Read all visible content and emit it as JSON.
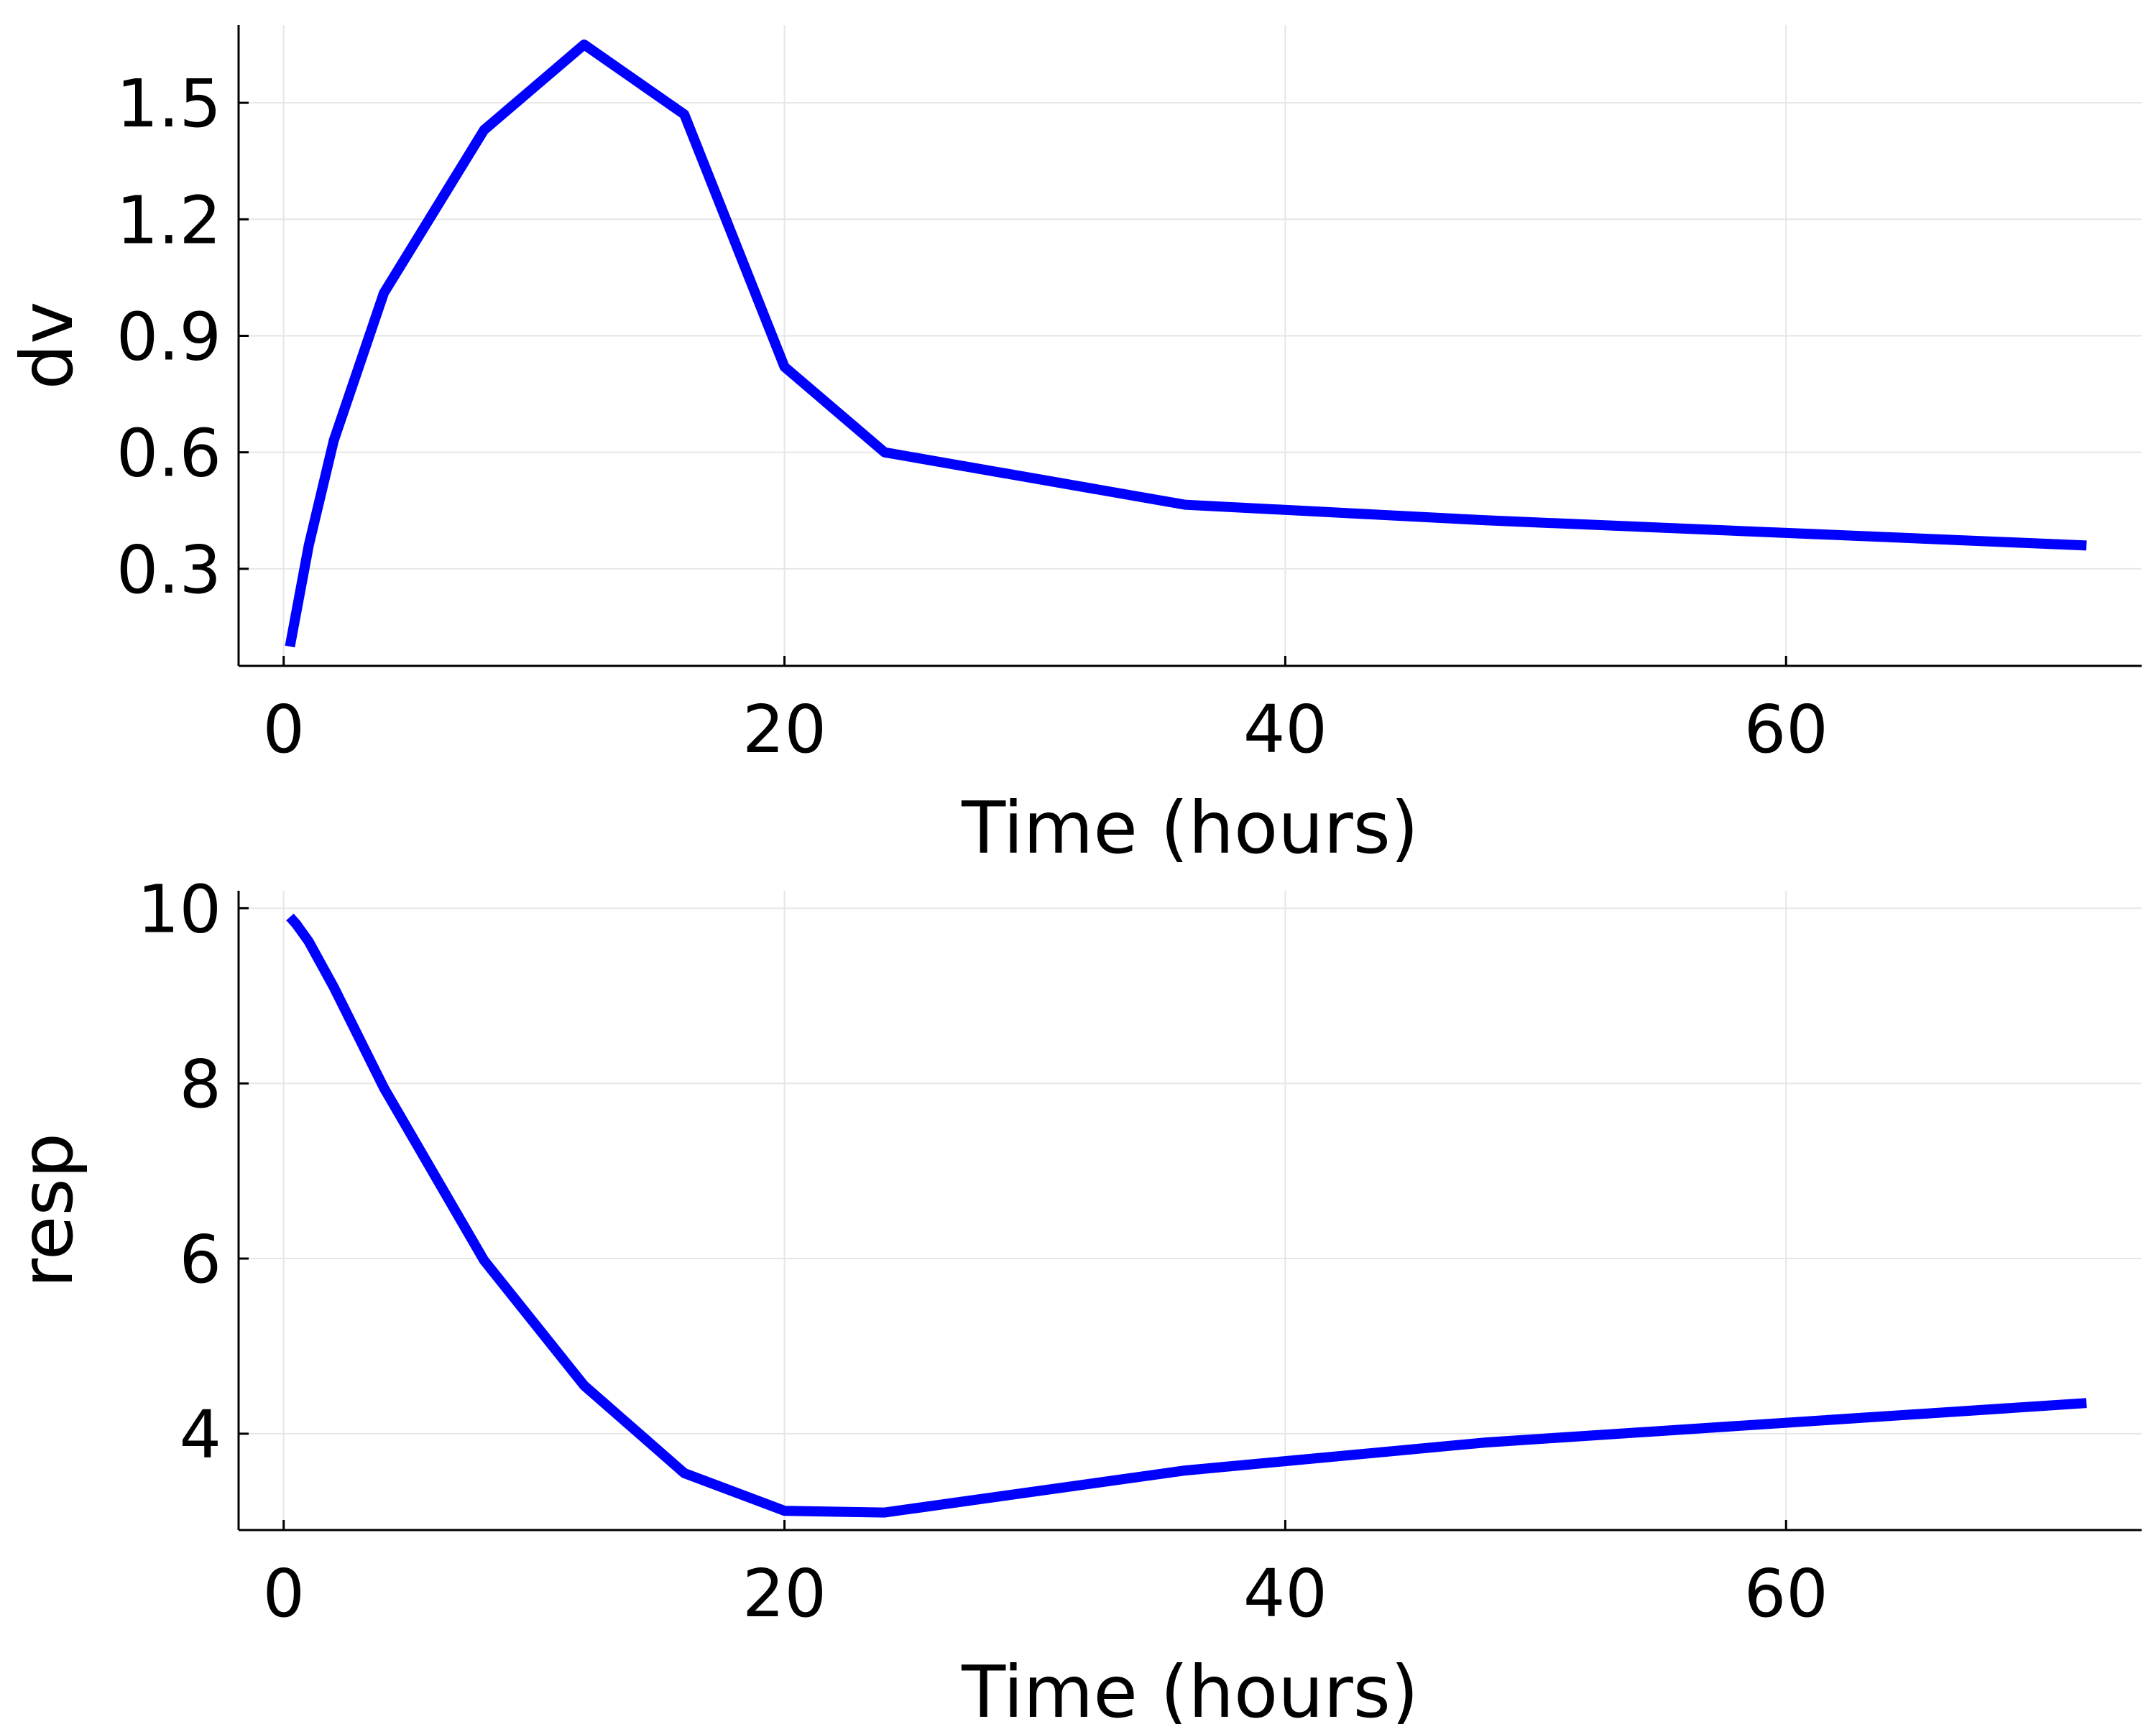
{
  "chart_data": [
    {
      "type": "line",
      "xlabel": "Time (hours)",
      "ylabel": "dv",
      "xlim": [
        -1.8,
        74.2
      ],
      "ylim": [
        0.05,
        1.7
      ],
      "xticks": [
        0,
        20,
        40,
        60
      ],
      "xtick_labels": [
        "0",
        "20",
        "40",
        "60"
      ],
      "yticks": [
        0.3,
        0.6,
        0.9,
        1.2,
        1.5
      ],
      "ytick_labels": [
        "0.3",
        "0.6",
        "0.9",
        "1.2",
        "1.5"
      ],
      "grid": true,
      "legend": "none",
      "series": [
        {
          "color": "#0000ff",
          "x": [
            0.25,
            1,
            2,
            4,
            8,
            12,
            16,
            20,
            24,
            36,
            48,
            72
          ],
          "y": [
            0.1,
            0.36,
            0.63,
            1.01,
            1.43,
            1.65,
            1.47,
            0.82,
            0.6,
            0.465,
            0.425,
            0.36
          ]
        }
      ]
    },
    {
      "type": "line",
      "xlabel": "Time (hours)",
      "ylabel": "resp",
      "xlim": [
        -1.8,
        74.2
      ],
      "ylim": [
        2.9,
        10.2
      ],
      "xticks": [
        0,
        20,
        40,
        60
      ],
      "xtick_labels": [
        "0",
        "20",
        "40",
        "60"
      ],
      "yticks": [
        4,
        6,
        8,
        10
      ],
      "ytick_labels": [
        "4",
        "6",
        "8",
        "10"
      ],
      "grid": true,
      "legend": "none",
      "series": [
        {
          "color": "#0000ff",
          "x": [
            0.25,
            0.5,
            1,
            2,
            4,
            8,
            12,
            16,
            20,
            24,
            36,
            48,
            72
          ],
          "y": [
            9.9,
            9.82,
            9.62,
            9.1,
            7.95,
            5.98,
            4.55,
            3.55,
            3.12,
            3.1,
            3.58,
            3.9,
            4.35
          ]
        }
      ]
    }
  ]
}
